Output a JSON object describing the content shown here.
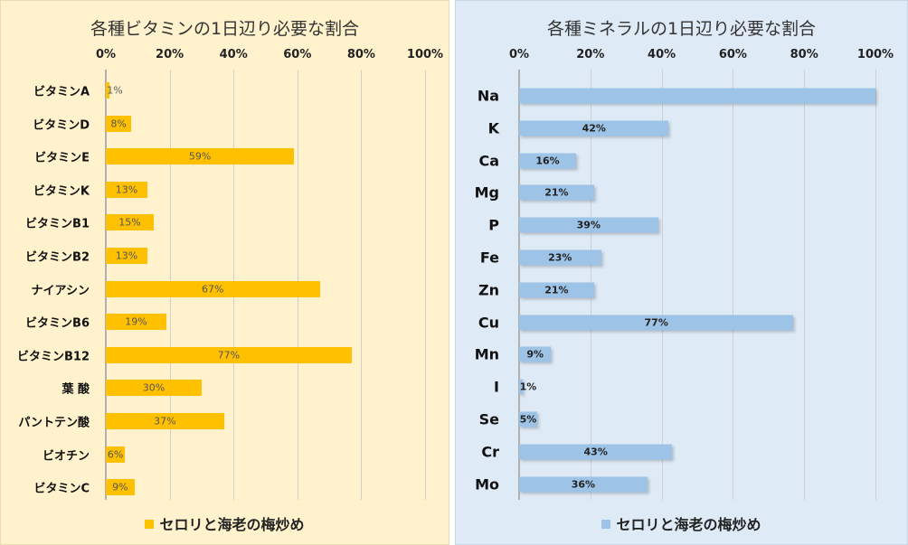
{
  "chart_data": [
    {
      "type": "bar",
      "orientation": "horizontal",
      "title": "各種ビタミンの1日辺り必要な割合",
      "xlim": [
        0,
        100
      ],
      "xticks": [
        "0%",
        "20%",
        "40%",
        "60%",
        "80%",
        "100%"
      ],
      "categories": [
        "ビタミンA",
        "ビタミンD",
        "ビタミンE",
        "ビタミンK",
        "ビタミンB1",
        "ビタミンB2",
        "ナイアシン",
        "ビタミンB6",
        "ビタミンB12",
        "葉 酸",
        "パントテン酸",
        "ビオチン",
        "ビタミンC"
      ],
      "series": [
        {
          "name": "セロリと海老の梅炒め",
          "color": "#FFC000",
          "values": [
            1,
            8,
            59,
            13,
            15,
            13,
            67,
            19,
            77,
            30,
            37,
            6,
            9
          ],
          "labels": [
            "1%",
            "8%",
            "59%",
            "13%",
            "15%",
            "13%",
            "67%",
            "19%",
            "77%",
            "30%",
            "37%",
            "6%",
            "9%"
          ]
        }
      ],
      "legend": "bottom"
    },
    {
      "type": "bar",
      "orientation": "horizontal",
      "title": "各種ミネラルの1日辺り必要な割合",
      "xlim": [
        0,
        100
      ],
      "xticks": [
        "0%",
        "20%",
        "40%",
        "60%",
        "80%",
        "100%"
      ],
      "categories": [
        "Na",
        "K",
        "Ca",
        "Mg",
        "P",
        "Fe",
        "Zn",
        "Cu",
        "Mn",
        "I",
        "Se",
        "Cr",
        "Mo"
      ],
      "series": [
        {
          "name": "セロリと海老の梅炒め",
          "color": "#9DC3E6",
          "values": [
            100,
            42,
            16,
            21,
            39,
            23,
            21,
            77,
            9,
            1,
            5,
            43,
            36
          ],
          "labels": [
            "",
            "42%",
            "16%",
            "21%",
            "39%",
            "23%",
            "21%",
            "77%",
            "9%",
            "1%",
            "5%",
            "43%",
            "36%"
          ]
        }
      ],
      "legend": "bottom"
    }
  ]
}
